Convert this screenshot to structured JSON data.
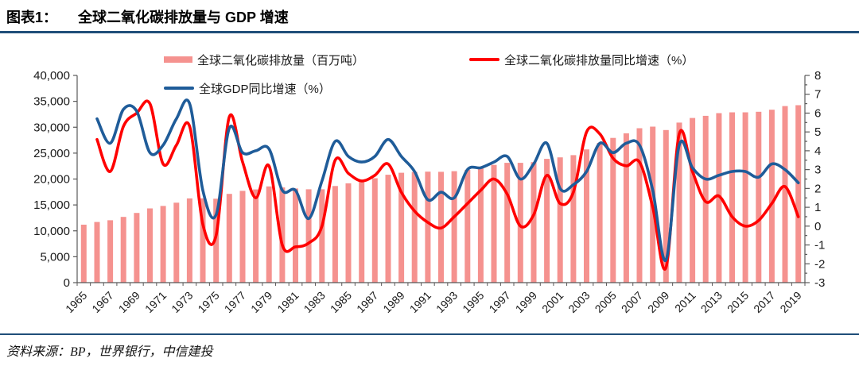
{
  "header": {
    "label": "图表1：",
    "title": "全球二氧化碳排放量与 GDP 增速"
  },
  "legend": {
    "items": [
      {
        "label": "全球二氧化碳排放量（百万吨）",
        "type": "bar",
        "color": "#F5928F"
      },
      {
        "label": "全球二氧化碳排放量同比增速（%）",
        "type": "line",
        "color": "#FF0000"
      },
      {
        "label": "全球GDP同比增速（%）",
        "type": "line",
        "color": "#1F5C99"
      }
    ]
  },
  "footer": {
    "source": "资料来源：BP，世界银行，中信建投"
  },
  "chart_data": {
    "type": "combo",
    "title": "全球二氧化碳排放量与 GDP 增速",
    "grid": false,
    "legend_position": "top",
    "x": [
      1965,
      1966,
      1967,
      1968,
      1969,
      1970,
      1971,
      1972,
      1973,
      1974,
      1975,
      1976,
      1977,
      1978,
      1979,
      1980,
      1981,
      1982,
      1983,
      1984,
      1985,
      1986,
      1987,
      1988,
      1989,
      1990,
      1991,
      1992,
      1993,
      1994,
      1995,
      1996,
      1997,
      1998,
      1999,
      2000,
      2001,
      2002,
      2003,
      2004,
      2005,
      2006,
      2007,
      2008,
      2009,
      2010,
      2011,
      2012,
      2013,
      2014,
      2015,
      2016,
      2017,
      2018,
      2019
    ],
    "x_label_interval": 2,
    "left_axis": {
      "min": 0,
      "max": 40000,
      "step": 5000,
      "tick_labels": [
        "0",
        "5,000",
        "10,000",
        "15,000",
        "20,000",
        "25,000",
        "30,000",
        "35,000",
        "40,000"
      ]
    },
    "right_axis": {
      "min": -3,
      "max": 8,
      "step": 1,
      "minor_step": 0.5,
      "tick_labels": [
        "-3",
        "-2",
        "-1",
        "0",
        "1",
        "2",
        "3",
        "4",
        "5",
        "6",
        "7",
        "8"
      ]
    },
    "series": [
      {
        "name": "全球二氧化碳排放量（百万吨）",
        "type": "bar",
        "axis": "left",
        "color": "#F5928F",
        "values": [
          11190,
          11710,
          12050,
          12690,
          13450,
          14330,
          14800,
          15440,
          16260,
          16280,
          16200,
          17140,
          17720,
          17990,
          18570,
          18380,
          18180,
          18020,
          18020,
          18650,
          19170,
          19630,
          20160,
          20830,
          21210,
          21380,
          21420,
          21400,
          21510,
          21770,
          22180,
          22730,
          23120,
          23120,
          23260,
          23890,
          24180,
          24610,
          25710,
          26970,
          27940,
          28830,
          29810,
          30110,
          29450,
          30890,
          31790,
          32200,
          32720,
          32880,
          32880,
          32980,
          33380,
          34080,
          34250
        ]
      },
      {
        "name": "全球二氧化碳排放量同比增速（%）",
        "type": "line",
        "axis": "right",
        "color": "#FF0000",
        "values": [
          null,
          4.6,
          2.9,
          5.3,
          6.0,
          6.5,
          3.3,
          4.3,
          5.3,
          0.1,
          -0.5,
          5.8,
          3.4,
          1.5,
          3.2,
          -1.0,
          -1.1,
          -0.9,
          0.0,
          3.5,
          2.8,
          2.4,
          2.7,
          3.3,
          1.8,
          0.8,
          0.2,
          -0.1,
          0.5,
          1.2,
          1.9,
          2.5,
          1.7,
          0.0,
          0.6,
          2.7,
          1.2,
          1.8,
          5.0,
          4.9,
          3.6,
          3.2,
          3.4,
          1.0,
          -2.2,
          4.9,
          2.9,
          1.3,
          1.6,
          0.5,
          0.0,
          0.3,
          1.2,
          2.1,
          0.5
        ]
      },
      {
        "name": "全球GDP同比增速（%）",
        "type": "line",
        "axis": "right",
        "color": "#1F5C99",
        "values": [
          null,
          5.7,
          4.4,
          6.2,
          6.1,
          3.9,
          4.3,
          5.7,
          6.5,
          1.9,
          0.6,
          5.2,
          3.9,
          4.0,
          4.1,
          1.9,
          1.9,
          0.4,
          2.4,
          4.5,
          3.7,
          3.4,
          3.7,
          4.6,
          3.7,
          2.9,
          1.4,
          1.8,
          1.5,
          3.0,
          3.1,
          3.4,
          3.7,
          2.5,
          3.3,
          4.4,
          2.0,
          2.2,
          2.9,
          4.4,
          3.9,
          4.4,
          4.3,
          1.9,
          -1.8,
          4.3,
          3.1,
          2.5,
          2.7,
          2.9,
          2.9,
          2.6,
          3.3,
          3.0,
          2.3
        ]
      }
    ]
  }
}
